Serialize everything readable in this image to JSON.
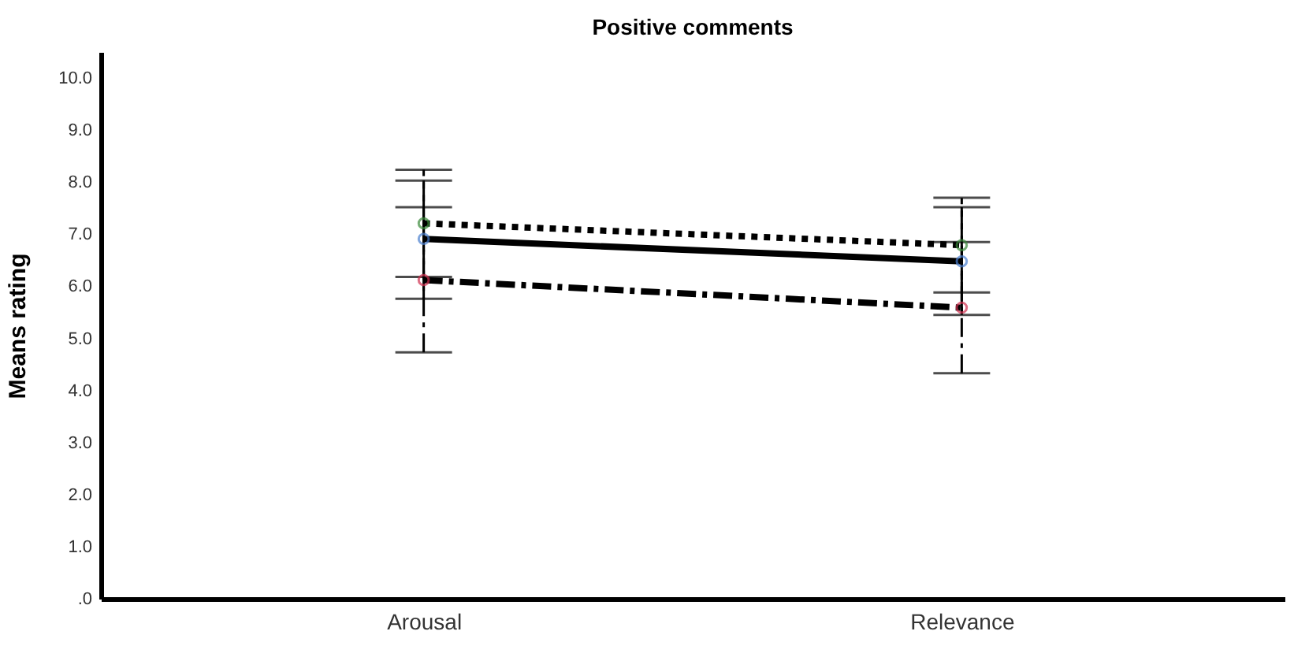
{
  "chart_data": {
    "type": "line",
    "title": "Positive comments",
    "ylabel": "Means rating",
    "categories": [
      "Arousal",
      "Relevance"
    ],
    "ylim": [
      0,
      10.5
    ],
    "yticks": [
      {
        "value": 0,
        "label": ".0"
      },
      {
        "value": 1,
        "label": "1.0"
      },
      {
        "value": 2,
        "label": "2.0"
      },
      {
        "value": 3,
        "label": "3.0"
      },
      {
        "value": 4,
        "label": "4.0"
      },
      {
        "value": 5,
        "label": "5.0"
      },
      {
        "value": 6,
        "label": "6.0"
      },
      {
        "value": 7,
        "label": "7.0"
      },
      {
        "value": 8,
        "label": "8.0"
      },
      {
        "value": 9,
        "label": "9.0"
      },
      {
        "value": 10,
        "label": "10.0"
      }
    ],
    "grid": false,
    "legend": false,
    "marker": "circle",
    "series": [
      {
        "color": "#000000",
        "colors": [
          "#3a8a3a",
          "#3a8a3a"
        ],
        "line_style": "dotted",
        "values": [
          7.21,
          6.79
        ],
        "errors": [
          [
            6.18,
            8.24
          ],
          [
            5.88,
            7.7
          ]
        ]
      },
      {
        "color": "#000000",
        "colors": [
          "#4a7fd0",
          "#4a7fd0"
        ],
        "line_style": "solid",
        "values": [
          6.91,
          6.48
        ],
        "errors": [
          [
            5.76,
            8.03
          ],
          [
            5.45,
            7.52
          ]
        ]
      },
      {
        "color": "#000000",
        "colors": [
          "#d03050",
          "#d03050"
        ],
        "line_style": "dashdot",
        "values": [
          6.12,
          5.59
        ],
        "errors": [
          [
            4.73,
            7.52
          ],
          [
            4.33,
            6.85
          ]
        ]
      }
    ]
  }
}
